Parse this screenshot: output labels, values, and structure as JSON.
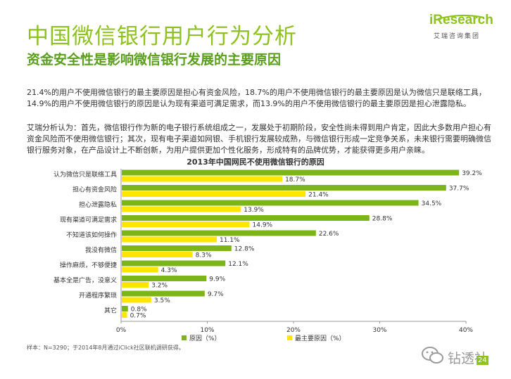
{
  "header": {
    "title": "中国微信银行用户行为分析",
    "subtitle": "资金安全性是影响微信银行发展的主要原因"
  },
  "logo": {
    "word": "iResearch",
    "sub": "艾瑞咨询集团",
    "color": "#8dc21f"
  },
  "body": {
    "paragraph1": "21.4%的用户不使用微信银行的最主要原因是担心有资金风险，18.7%的用户不使用微信银行的最主要原因是认为微信只是联络工具，14.9%的用户不使用微信银行的原因是认为现有渠道可满足需求，而13.9%的用户不使用微信银行的最主要原因是担心泄露隐私。",
    "paragraph2": "艾瑞分析认为：首先，微信银行作为新的电子银行系统组成之一，发展处于初期阶段，安全性尚未得到用户肯定，因此大多数用户担心有资金风险而不使用微信银行；其次，现有电子渠道如网银、手机银行发展较成熟，与微信银行形成一定竞争关系，未来银行需要明确微信银行服务对象，在产品设计上不断创新，为用户提供更加个性化服务，形成特有的品牌优势，才能获得更多用户亲睐。"
  },
  "chart_data": {
    "type": "bar",
    "orientation": "horizontal",
    "title": "2013年中国网民不使用微信银行的原因",
    "categories": [
      "认为微信只是联络工具",
      "担心有资金风险",
      "担心泄露隐私",
      "现有渠道可满足需求",
      "不知道该如何操作",
      "我没有微信",
      "操作麻烦，不够便捷",
      "基本全是广告，没意义",
      "开通程序繁琐",
      "其它"
    ],
    "series": [
      {
        "name": "原因（%）",
        "color": "#7cb518",
        "values": [
          39.2,
          37.7,
          34.5,
          28.8,
          22.6,
          12.8,
          12.1,
          9.9,
          9.7,
          0.8
        ],
        "labels": [
          "39.2%",
          "37.7%",
          "34.5%",
          "28.8%",
          "22.6%",
          "12.8%",
          "12.1%",
          "9.9%",
          "9.7%",
          "0.8%"
        ]
      },
      {
        "name": "最主要原因（%）",
        "color": "#ffe600",
        "values": [
          18.7,
          21.4,
          13.9,
          14.9,
          11.1,
          8.3,
          4.3,
          3.2,
          3.5,
          0.7
        ],
        "labels": [
          "18.7%",
          "21.4%",
          "13.9%",
          "14.9%",
          "11.1%",
          "8.3%",
          "4.3%",
          "3.2%",
          "3.5%",
          "0.7%"
        ]
      }
    ],
    "xlim": [
      0,
      40
    ],
    "x_ticks": [
      "0%",
      "10%",
      "20%",
      "30%",
      "40%"
    ],
    "grid": false,
    "legend_position": "bottom"
  },
  "footer": {
    "source": "样本：N=3290；于2014年8月通过iClick社区联机调研获得。",
    "watermark": "钻透社",
    "page_number": "24"
  }
}
